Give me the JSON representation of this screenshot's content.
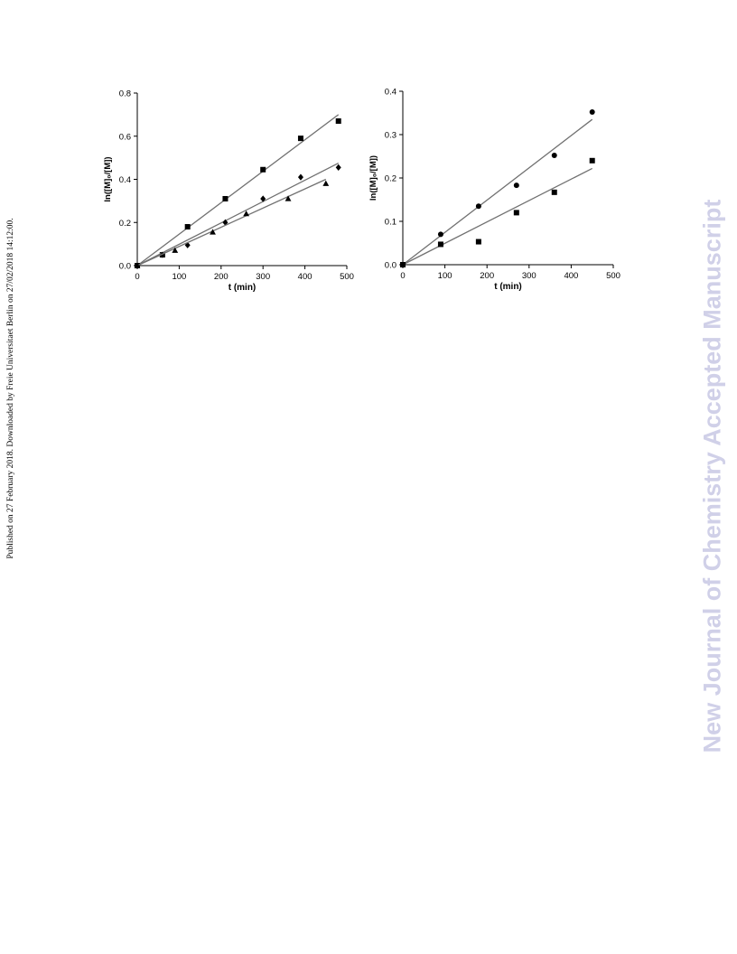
{
  "side_note": "Published on 27 February 2018. Downloaded by Freie Universitaet Berlin on 27/02/2018 14:12:00.",
  "watermark": "New Journal of Chemistry Accepted Manuscript",
  "chart_data": [
    {
      "type": "scatter",
      "xlabel": "t (min)",
      "ylabel": "ln([M]₀/[M])",
      "xlim": [
        0,
        500
      ],
      "ylim": [
        0,
        0.8
      ],
      "xticks": [
        "0",
        "100",
        "200",
        "300",
        "400",
        "500"
      ],
      "yticks": [
        "0.0",
        "0.2",
        "0.4",
        "0.6",
        "0.8"
      ],
      "grid": false,
      "series": [
        {
          "marker": "square",
          "x": [
            0,
            60,
            120,
            210,
            300,
            390,
            480
          ],
          "y": [
            0,
            0.05,
            0.18,
            0.31,
            0.445,
            0.59,
            0.67
          ],
          "fit": [
            [
              0,
              0
            ],
            [
              480,
              0.7
            ]
          ]
        },
        {
          "marker": "diamond",
          "x": [
            0,
            60,
            120,
            210,
            300,
            390,
            480
          ],
          "y": [
            0,
            0.05,
            0.095,
            0.2,
            0.31,
            0.41,
            0.455
          ],
          "fit": [
            [
              0,
              0
            ],
            [
              480,
              0.475
            ]
          ]
        },
        {
          "marker": "triangle",
          "x": [
            0,
            90,
            180,
            260,
            360,
            450
          ],
          "y": [
            0,
            0.07,
            0.155,
            0.24,
            0.31,
            0.38
          ],
          "fit": [
            [
              0,
              0
            ],
            [
              450,
              0.4
            ]
          ]
        }
      ]
    },
    {
      "type": "scatter",
      "xlabel": "t (min)",
      "ylabel": "ln([M]₀/[M])",
      "xlim": [
        0,
        500
      ],
      "ylim": [
        0,
        0.4
      ],
      "xticks": [
        "0",
        "100",
        "200",
        "300",
        "400",
        "500"
      ],
      "yticks": [
        "0.0",
        "0.1",
        "0.2",
        "0.3",
        "0.4"
      ],
      "grid": false,
      "series": [
        {
          "marker": "circle",
          "x": [
            0,
            90,
            180,
            270,
            360,
            450
          ],
          "y": [
            0,
            0.07,
            0.135,
            0.183,
            0.252,
            0.352
          ],
          "fit": [
            [
              0,
              0
            ],
            [
              450,
              0.335
            ]
          ]
        },
        {
          "marker": "square",
          "x": [
            0,
            90,
            180,
            270,
            360,
            450
          ],
          "y": [
            0,
            0.047,
            0.053,
            0.12,
            0.167,
            0.24
          ],
          "fit": [
            [
              0,
              0
            ],
            [
              450,
              0.222
            ]
          ]
        }
      ]
    }
  ]
}
